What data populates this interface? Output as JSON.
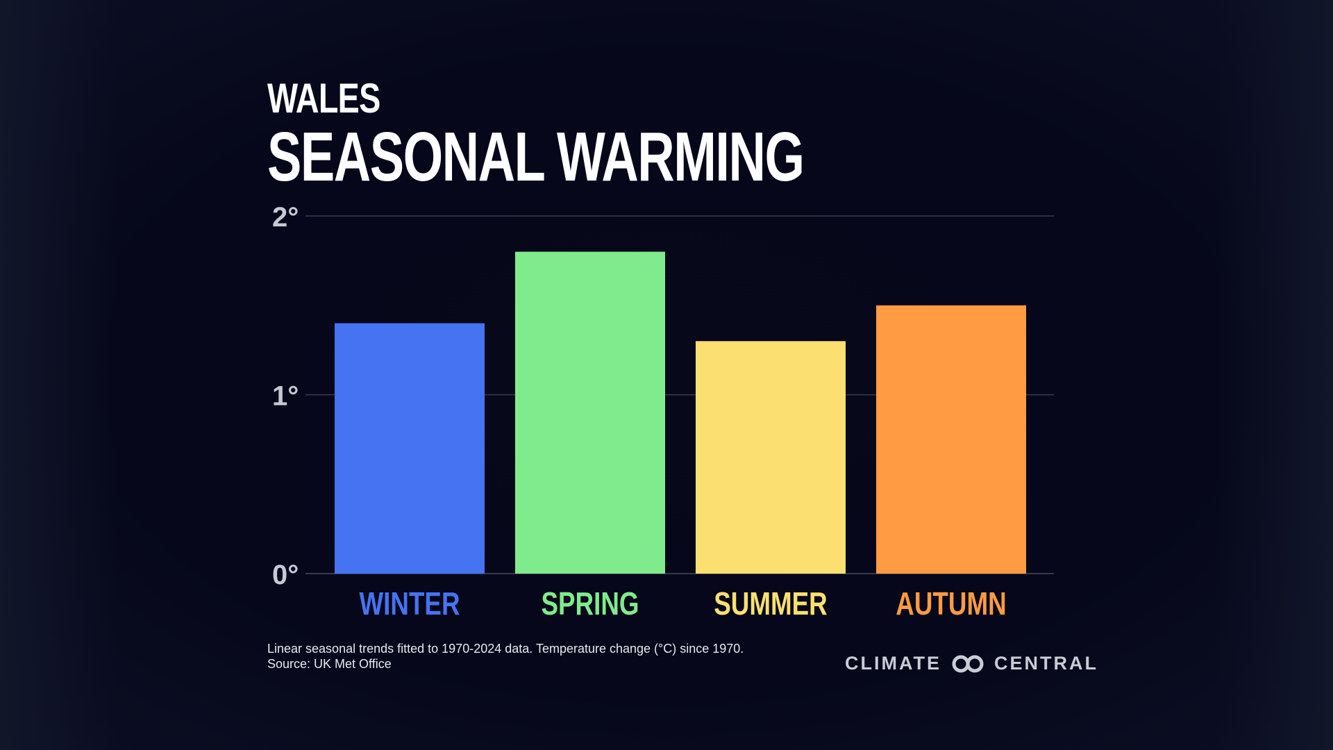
{
  "header": {
    "subtitle": "WALES",
    "title": "SEASONAL WARMING"
  },
  "chart_data": {
    "type": "bar",
    "categories": [
      "WINTER",
      "SPRING",
      "SUMMER",
      "AUTUMN"
    ],
    "values": [
      1.4,
      1.8,
      1.3,
      1.5
    ],
    "colors": [
      "#4673f2",
      "#80eb8d",
      "#fbe071",
      "#ff9b42"
    ],
    "yticks": [
      0,
      1,
      2
    ],
    "ytick_labels": [
      "0°",
      "1°",
      "2°"
    ],
    "ylim": [
      0,
      2
    ],
    "grid": true
  },
  "footnote": {
    "line1": "Linear seasonal trends fitted to 1970-2024 data. Temperature change (°C) since 1970.",
    "line2": "Source: UK Met Office"
  },
  "logo": {
    "left": "CLIMATE",
    "right": "CENTRAL",
    "icon": "climate-central-rings-icon"
  }
}
